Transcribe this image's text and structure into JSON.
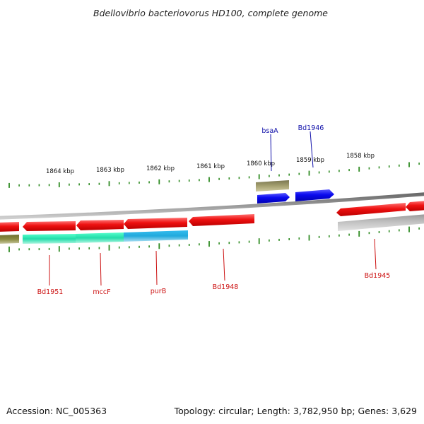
{
  "title": "Bdellovibrio bacteriovorus HD100, complete genome",
  "scale_labels": [
    "1864 kbp",
    "1863 kbp",
    "1862 kbp",
    "1861 kbp",
    "1860 kbp",
    "1859 kbp",
    "1858 kbp"
  ],
  "gene_labels": [
    "bsaA",
    "Bd1946",
    "Bd1951",
    "mccF",
    "purB",
    "Bd1948",
    "Bd1945"
  ],
  "footer": {
    "accession": "Accession: NC_005363",
    "summary": "Topology: circular; Length: 3,782,950 bp; Genes: 3,629"
  },
  "colors": {
    "backbone": "#888888",
    "tick": "#2e8b22",
    "cds_forward": "#ee1111",
    "cds_reverse": "#0a0aee",
    "rna_olive": "#a5a070",
    "teal_segment": "#22ddaa",
    "cyan_segment": "#22aadd",
    "grey_segment": "#c4c4c4",
    "label_red": "#cc1111",
    "label_blue": "#1111aa"
  }
}
